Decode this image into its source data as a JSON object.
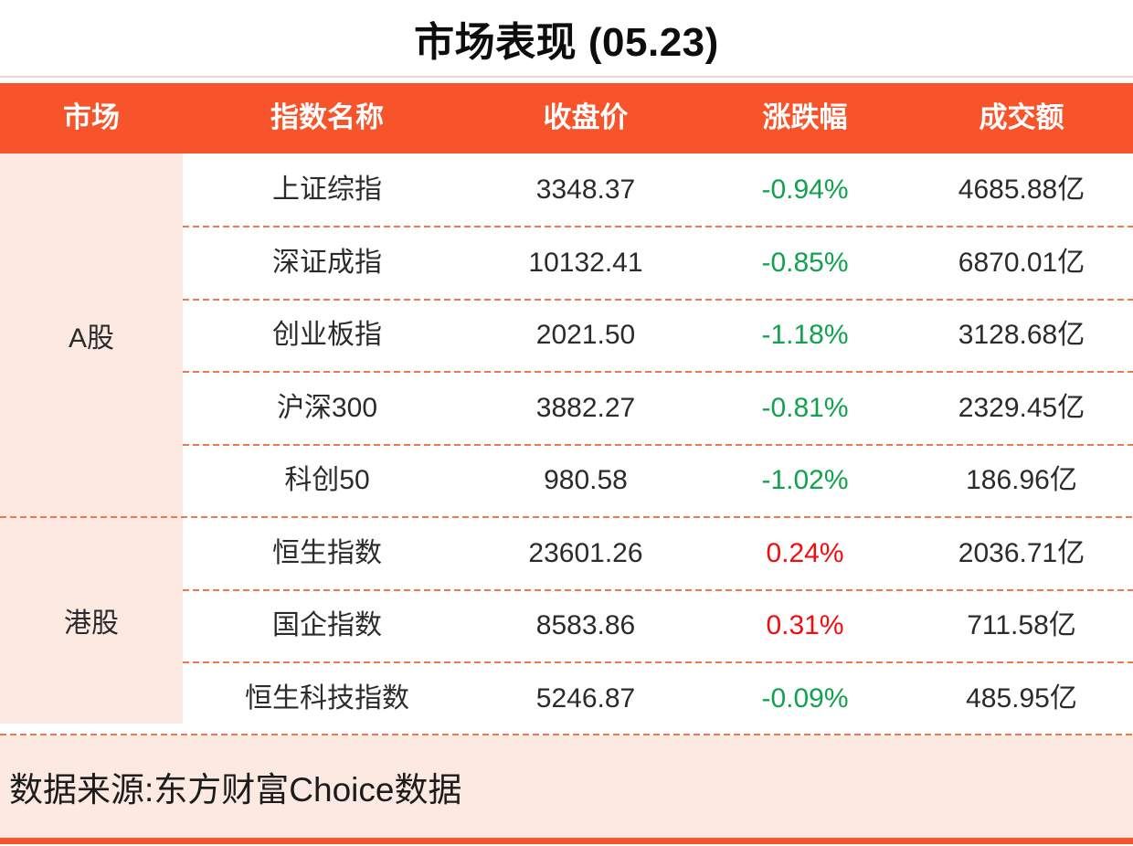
{
  "title": "市场表现 (05.23)",
  "chart_data": {
    "type": "table",
    "title": "市场表现 (05.23)",
    "columns": [
      "市场",
      "指数名称",
      "收盘价",
      "涨跌幅",
      "成交额"
    ],
    "row_groups": [
      {
        "label": "A股",
        "row_count": 5
      },
      {
        "label": "港股",
        "row_count": 3
      }
    ],
    "rows": [
      {
        "group": "A股",
        "name": "上证综指",
        "close": "3348.37",
        "change": "-0.94%",
        "turnover": "4685.88亿",
        "trend": "down"
      },
      {
        "group": "A股",
        "name": "深证成指",
        "close": "10132.41",
        "change": "-0.85%",
        "turnover": "6870.01亿",
        "trend": "down"
      },
      {
        "group": "A股",
        "name": "创业板指",
        "close": "2021.50",
        "change": "-1.18%",
        "turnover": "3128.68亿",
        "trend": "down"
      },
      {
        "group": "A股",
        "name": "沪深300",
        "close": "3882.27",
        "change": "-0.81%",
        "turnover": "2329.45亿",
        "trend": "down"
      },
      {
        "group": "A股",
        "name": "科创50",
        "close": "980.58",
        "change": "-1.02%",
        "turnover": "186.96亿",
        "trend": "down"
      },
      {
        "group": "港股",
        "name": "恒生指数",
        "close": "23601.26",
        "change": "0.24%",
        "turnover": "2036.71亿",
        "trend": "up"
      },
      {
        "group": "港股",
        "name": "国企指数",
        "close": "8583.86",
        "change": "0.31%",
        "turnover": "711.58亿",
        "trend": "up"
      },
      {
        "group": "港股",
        "name": "恒生科技指数",
        "close": "5246.87",
        "change": "-0.09%",
        "turnover": "485.95亿",
        "trend": "down"
      }
    ],
    "source": "数据来源:东方财富Choice数据"
  },
  "theme": {
    "accent_orange": "#f8542b",
    "dashed_line_orange": "#f4764f",
    "light_pink": "#fce9e2",
    "up_red": "#f20d0d",
    "down_green": "#10a24c",
    "text_dark": "#2b2b2b"
  }
}
